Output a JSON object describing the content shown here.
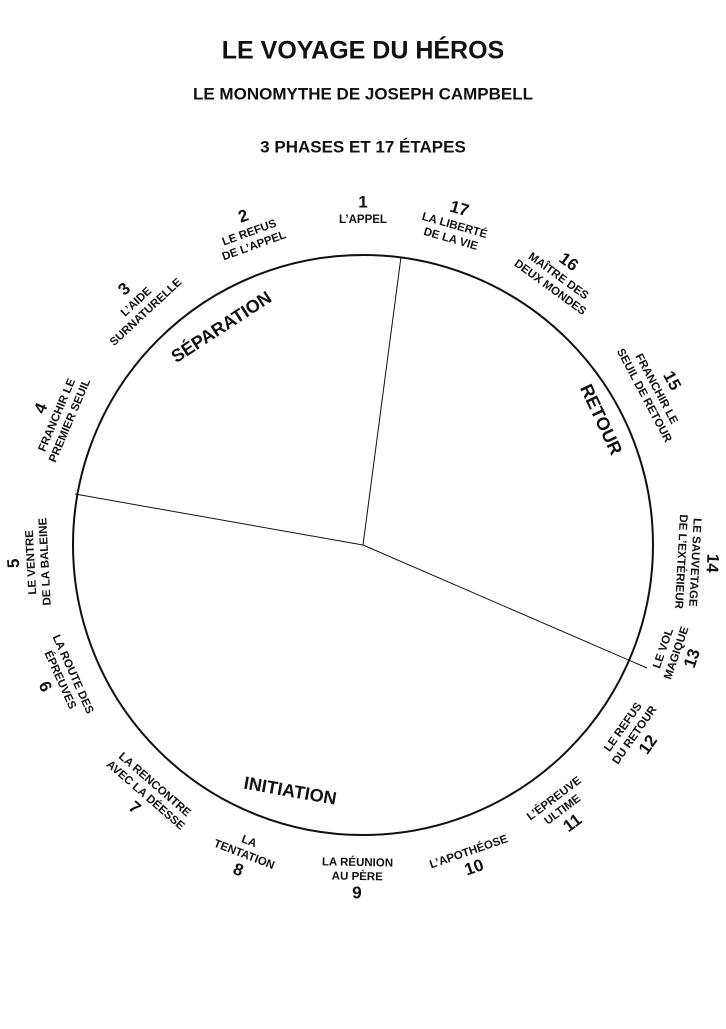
{
  "header": {
    "title": "LE VOYAGE DU HÉROS",
    "subtitle": "LE MONOMYTHE DE JOSEPH CAMPBELL",
    "heading": "3 PHASES ET 17 ÉTAPES"
  },
  "phases": [
    {
      "label": "SÉPARATION"
    },
    {
      "label": "INITIATION"
    },
    {
      "label": "RETOUR"
    }
  ],
  "stages": [
    {
      "number": 1,
      "lines": [
        "L’APPEL"
      ]
    },
    {
      "number": 2,
      "lines": [
        "LE REFUS",
        "DE L’APPEL"
      ]
    },
    {
      "number": 3,
      "lines": [
        "L’AIDE",
        "SURNATURELLE"
      ]
    },
    {
      "number": 4,
      "lines": [
        "FRANCHIR LE",
        "PREMIER SEUIL"
      ]
    },
    {
      "number": 5,
      "lines": [
        "LE VENTRE",
        "DE LA BALEINE"
      ]
    },
    {
      "number": 6,
      "lines": [
        "LA ROUTE DES",
        "ÉPREUVES"
      ]
    },
    {
      "number": 7,
      "lines": [
        "LA RENCONTRE",
        "AVEC LA DÉESSE"
      ]
    },
    {
      "number": 8,
      "lines": [
        "LA",
        "TENTATION"
      ]
    },
    {
      "number": 9,
      "lines": [
        "LA RÉUNION",
        "AU PÈRE"
      ]
    },
    {
      "number": 10,
      "lines": [
        "L’APOTHÉOSE"
      ]
    },
    {
      "number": 11,
      "lines": [
        "L’ÉPREUVE",
        "ULTIME"
      ]
    },
    {
      "number": 12,
      "lines": [
        "LE REFUS",
        "DU RETOUR"
      ]
    },
    {
      "number": 13,
      "lines": [
        "LE VOL",
        "MAGIQUE"
      ]
    },
    {
      "number": 14,
      "lines": [
        "LE SAUVETAGE",
        "DE L’EXTÉRIEUR"
      ]
    },
    {
      "number": 15,
      "lines": [
        "FRANCHIR LE",
        "SEUIL DE RETOUR"
      ]
    },
    {
      "number": 16,
      "lines": [
        "MAÎTRE DES",
        "DEUX MONDES"
      ]
    },
    {
      "number": 17,
      "lines": [
        "LA LIBERTÉ",
        "DE LA VIE"
      ]
    }
  ]
}
